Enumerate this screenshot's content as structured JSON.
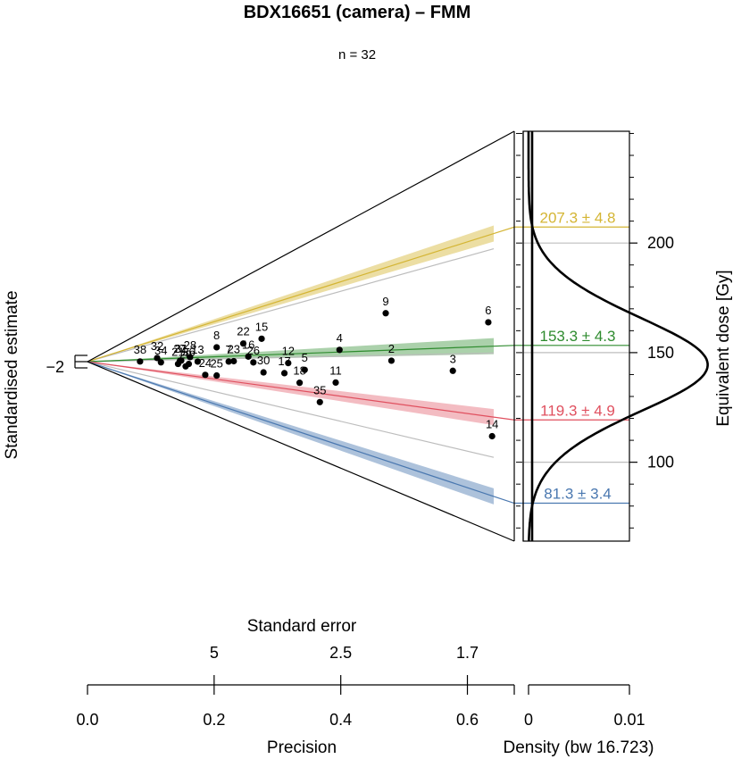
{
  "chart_data": {
    "type": "scatter",
    "title": "BDX16651 (camera) – FMM",
    "subtitle": "n = 32",
    "ylabel_left": "Standardised estimate",
    "ylabel_right": "Equivalent dose [Gy]",
    "xlabel_precision": "Precision",
    "xlabel_density": "Density (bw 16.723)",
    "xlabel_se": "Standard error",
    "left_tick_label": "−2",
    "precision_ticks": [
      {
        "v": 0.0,
        "label": "0.0"
      },
      {
        "v": 0.2,
        "label": "0.2"
      },
      {
        "v": 0.4,
        "label": "0.4"
      },
      {
        "v": 0.6,
        "label": "0.6"
      }
    ],
    "se_ticks": [
      {
        "v": 0.2,
        "label": "5"
      },
      {
        "v": 0.4,
        "label": "2.5"
      },
      {
        "v": 0.6,
        "label": "1.7"
      }
    ],
    "density_ticks": [
      {
        "v": 0,
        "label": "0"
      },
      {
        "v": 0.01,
        "label": "0.01"
      }
    ],
    "dose_ticks": [
      {
        "v": 100,
        "label": "100"
      },
      {
        "v": 150,
        "label": "150"
      },
      {
        "v": 200,
        "label": "200"
      }
    ],
    "precision_range": [
      0,
      0.674
    ],
    "dose_range": [
      64,
      251
    ],
    "reference_dose": 143,
    "components": [
      {
        "label": "207.3 ± 4.8",
        "value": 207.3,
        "color": "#d4b534",
        "band": "rgba(212,181,52,0.45)"
      },
      {
        "label": "153.3 ± 4.3",
        "value": 153.3,
        "color": "#2e8b2e",
        "band": "rgba(46,139,46,0.40)"
      },
      {
        "label": "119.3 ± 4.9",
        "value": 119.3,
        "color": "#e0505f",
        "band": "rgba(224,80,95,0.38)"
      },
      {
        "label": "81.3 ± 3.4",
        "value": 81.3,
        "color": "#4a78b0",
        "band": "rgba(74,120,176,0.45)"
      }
    ],
    "grey_lines": [
      200,
      150,
      100
    ],
    "points": [
      {
        "id": "2",
        "x": 0.48,
        "y": 146.5
      },
      {
        "id": "3",
        "x": 0.577,
        "y": 141.0
      },
      {
        "id": "4",
        "x": 0.398,
        "y": 155.0
      },
      {
        "id": "5",
        "x": 0.343,
        "y": 138.5
      },
      {
        "id": "6",
        "x": 0.633,
        "y": 165.0
      },
      {
        "id": "7",
        "x": 0.223,
        "y": 146.0
      },
      {
        "id": "8",
        "x": 0.204,
        "y": 167.5
      },
      {
        "id": "9",
        "x": 0.471,
        "y": 177.5
      },
      {
        "id": "11",
        "x": 0.392,
        "y": 129.5
      },
      {
        "id": "12",
        "x": 0.317,
        "y": 144.5
      },
      {
        "id": "13",
        "x": 0.174,
        "y": 146.0
      },
      {
        "id": "14",
        "x": 0.639,
        "y": 110.0
      },
      {
        "id": "15",
        "x": 0.275,
        "y": 171.5
      },
      {
        "id": "16",
        "x": 0.254,
        "y": 152.0
      },
      {
        "id": "17",
        "x": 0.311,
        "y": 134.5
      },
      {
        "id": "18",
        "x": 0.335,
        "y": 126.5
      },
      {
        "id": "20",
        "x": 0.155,
        "y": 136.5
      },
      {
        "id": "21",
        "x": 0.143,
        "y": 141.0
      },
      {
        "id": "22",
        "x": 0.246,
        "y": 168.5
      },
      {
        "id": "23",
        "x": 0.231,
        "y": 146.5
      },
      {
        "id": "24",
        "x": 0.186,
        "y": 124.0
      },
      {
        "id": "25",
        "x": 0.204,
        "y": 125.0
      },
      {
        "id": "26",
        "x": 0.262,
        "y": 145.0
      },
      {
        "id": "27",
        "x": 0.146,
        "y": 147.5
      },
      {
        "id": "28",
        "x": 0.162,
        "y": 154.5
      },
      {
        "id": "30",
        "x": 0.278,
        "y": 134.0
      },
      {
        "id": "31",
        "x": 0.148,
        "y": 148.0
      },
      {
        "id": "32",
        "x": 0.11,
        "y": 156.0
      },
      {
        "id": "34",
        "x": 0.116,
        "y": 144.0
      },
      {
        "id": "35",
        "x": 0.367,
        "y": 112.0
      },
      {
        "id": "36",
        "x": 0.16,
        "y": 141.5
      },
      {
        "id": "38",
        "x": 0.083,
        "y": 146.5
      }
    ]
  }
}
